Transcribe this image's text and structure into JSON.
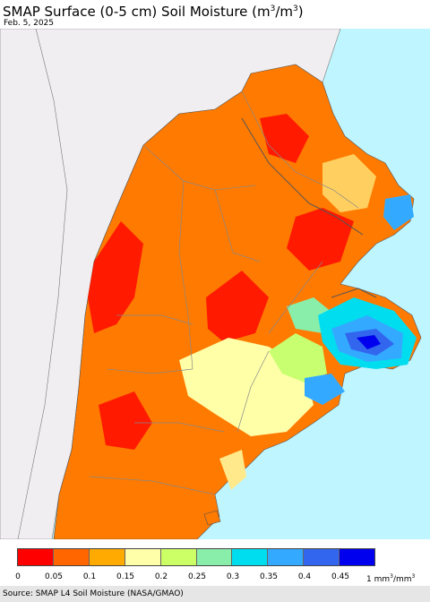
{
  "title": {
    "main": "SMAP Surface (0-5 cm) Soil Moisture (m",
    "sup1": "3",
    "slash": "/m",
    "sup2": "3",
    "close": ")"
  },
  "date": "Feb. 5, 2025",
  "legend": {
    "colors": [
      "#ff0000",
      "#ff6600",
      "#ffaa00",
      "#ffffaa",
      "#ccff66",
      "#88eeaa",
      "#00ddee",
      "#33aaff",
      "#3366ee",
      "#0000ee"
    ],
    "labels": [
      "0",
      "0.05",
      "0.1",
      "0.15",
      "0.2",
      "0.25",
      "0.3",
      "0.35",
      "0.4",
      "0.45"
    ],
    "unit": "1 mm",
    "unit_sup": "3",
    "unit_tail": "/mm",
    "unit_sup2": "3"
  },
  "map_colors": {
    "ocean": "#bff5ff",
    "land_nodata": "#f0eef0",
    "border": "#888888"
  },
  "source": "Source: SMAP L4 Soil Moisture (NASA/GMAO)"
}
